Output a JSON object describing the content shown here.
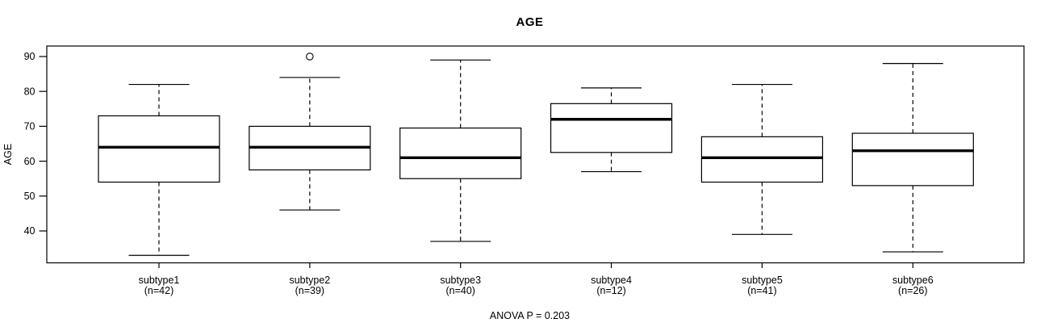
{
  "figure": {
    "title": "AGE",
    "ylabel": "AGE",
    "annotation": "ANOVA P = 0.203"
  },
  "colors": {
    "line": "#000000",
    "background": "#ffffff",
    "box_fill": "#ffffff"
  },
  "chart_data": {
    "type": "boxplot",
    "title": "AGE",
    "xlabel": "",
    "ylabel": "AGE",
    "annotation": "ANOVA P = 0.203",
    "grid": false,
    "legend": null,
    "ylim": [
      31,
      93
    ],
    "yticks": [
      40,
      50,
      60,
      70,
      80,
      90
    ],
    "groups": [
      {
        "label": "subtype1",
        "count_label": "(n=42)",
        "n": 42,
        "whisker_low": 33,
        "q1": 54,
        "median": 64,
        "q3": 73,
        "whisker_high": 82,
        "outliers": []
      },
      {
        "label": "subtype2",
        "count_label": "(n=39)",
        "n": 39,
        "whisker_low": 46,
        "q1": 57.5,
        "median": 64,
        "q3": 70,
        "whisker_high": 84,
        "outliers": [
          90
        ]
      },
      {
        "label": "subtype3",
        "count_label": "(n=40)",
        "n": 40,
        "whisker_low": 37,
        "q1": 55,
        "median": 61,
        "q3": 69.5,
        "whisker_high": 89,
        "outliers": []
      },
      {
        "label": "subtype4",
        "count_label": "(n=12)",
        "n": 12,
        "whisker_low": 57,
        "q1": 62.5,
        "median": 72,
        "q3": 76.5,
        "whisker_high": 81,
        "outliers": []
      },
      {
        "label": "subtype5",
        "count_label": "(n=41)",
        "n": 41,
        "whisker_low": 39,
        "q1": 54,
        "median": 61,
        "q3": 67,
        "whisker_high": 82,
        "outliers": []
      },
      {
        "label": "subtype6",
        "count_label": "(n=26)",
        "n": 26,
        "whisker_low": 34,
        "q1": 53,
        "median": 63,
        "q3": 68,
        "whisker_high": 88,
        "outliers": []
      }
    ]
  }
}
